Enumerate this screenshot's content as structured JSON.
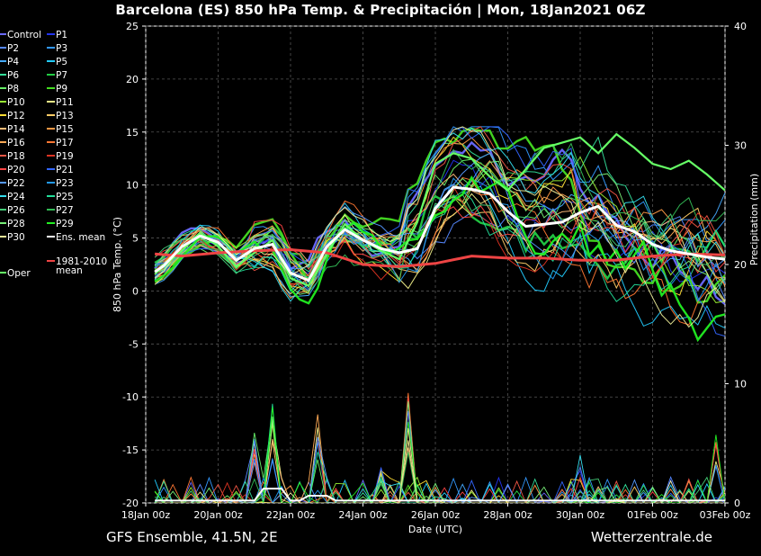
{
  "title": "Barcelona  (ES)  850 hPa Temp. & Precipitación | Mon, 18Jan2021 06Z",
  "footer_left": "GFS Ensemble, 41.5N, 2E",
  "footer_right": "Wetterzentrale.de",
  "legend": {
    "members": [
      {
        "name": "Control",
        "color": "#6a6aff"
      },
      {
        "name": "P1",
        "color": "#2233ee"
      },
      {
        "name": "P2",
        "color": "#5588ff"
      },
      {
        "name": "P3",
        "color": "#3399ff"
      },
      {
        "name": "P4",
        "color": "#44aaff"
      },
      {
        "name": "P5",
        "color": "#22ccff"
      },
      {
        "name": "P6",
        "color": "#33dd99"
      },
      {
        "name": "P7",
        "color": "#22cc44"
      },
      {
        "name": "P8",
        "color": "#66ee66"
      },
      {
        "name": "P9",
        "color": "#44dd22"
      },
      {
        "name": "P10",
        "color": "#99ee33"
      },
      {
        "name": "P11",
        "color": "#eeee88"
      },
      {
        "name": "P12",
        "color": "#ffdd33"
      },
      {
        "name": "P13",
        "color": "#ffcc66"
      },
      {
        "name": "P14",
        "color": "#ffbb77"
      },
      {
        "name": "P15",
        "color": "#ff9944"
      },
      {
        "name": "P16",
        "color": "#ffaa55"
      },
      {
        "name": "P17",
        "color": "#ff7733"
      },
      {
        "name": "P18",
        "color": "#ee5544"
      },
      {
        "name": "P19",
        "color": "#dd3322"
      },
      {
        "name": "P20",
        "color": "#ff4444"
      },
      {
        "name": "P21",
        "color": "#3366ff"
      },
      {
        "name": "P22",
        "color": "#5599ff"
      },
      {
        "name": "P23",
        "color": "#2299ee"
      },
      {
        "name": "P24",
        "color": "#33ddee"
      },
      {
        "name": "P25",
        "color": "#22dd99"
      },
      {
        "name": "P26",
        "color": "#44cc77"
      },
      {
        "name": "P27",
        "color": "#33bb55"
      },
      {
        "name": "P28",
        "color": "#77ee77"
      },
      {
        "name": "P29",
        "color": "#22ee22"
      },
      {
        "name": "P30",
        "color": "#eeee99"
      }
    ],
    "ens_mean": {
      "name": "Ens. mean",
      "color": "#ffffff"
    },
    "climate_mean_line1": "1981-2010",
    "climate_mean_line2": "mean",
    "climate_color": "#ee4444",
    "oper": {
      "name": "Oper",
      "color": "#66ff66"
    }
  },
  "chart_data": {
    "type": "line",
    "x_ticks": [
      "18Jan 00z",
      "20Jan 00z",
      "22Jan 00z",
      "24Jan 00z",
      "26Jan 00z",
      "28Jan 00z",
      "30Jan 00z",
      "01Feb 00z",
      "03Feb 00z"
    ],
    "xlabel": "Date (UTC)",
    "ylabel_left": "850 hPa Temp. (°C)",
    "ylabel_right": "Precipitation (mm)",
    "y_left_ticks": [
      25,
      20,
      15,
      10,
      5,
      0,
      -5,
      -10,
      -15,
      -20
    ],
    "y_right_ticks": [
      40,
      30,
      20,
      10,
      0
    ],
    "ylim_left": [
      -20,
      25
    ],
    "ylim_right": [
      0,
      40
    ],
    "x_range_days": [
      0,
      16
    ],
    "grid": true,
    "ens_mean": {
      "days": [
        0.25,
        0.5,
        1,
        1.5,
        2,
        2.5,
        3,
        3.5,
        4,
        4.5,
        5,
        5.5,
        6,
        6.5,
        7,
        7.5,
        8,
        8.5,
        9,
        9.5,
        10,
        10.5,
        11,
        11.5,
        12,
        12.5,
        13,
        13.5,
        14,
        14.5,
        15,
        15.5,
        16
      ],
      "temp": [
        1.8,
        2.4,
        4.2,
        5.2,
        4.6,
        2.9,
        4.0,
        4.4,
        1.7,
        1.0,
        4.2,
        5.8,
        4.8,
        4.0,
        3.6,
        4.0,
        7.8,
        9.8,
        9.6,
        9.2,
        7.5,
        6.1,
        6.3,
        6.5,
        7.4,
        8.0,
        6.2,
        5.6,
        4.4,
        3.8,
        3.5,
        3.2,
        3.0
      ]
    },
    "climate_mean": {
      "days": [
        0.25,
        1,
        2,
        3,
        4,
        5,
        6,
        7,
        8,
        9,
        10,
        11,
        12,
        13,
        14,
        15,
        16
      ],
      "temp": [
        3.5,
        3.3,
        3.6,
        3.8,
        3.9,
        3.6,
        2.5,
        2.3,
        2.6,
        3.3,
        3.1,
        3.1,
        2.9,
        2.9,
        3.3,
        3.5,
        3.4
      ]
    },
    "oper": {
      "days": [
        0.25,
        1,
        1.5,
        2,
        2.5,
        3,
        3.5,
        4,
        4.5,
        5,
        5.5,
        6,
        6.5,
        7,
        7.5,
        8,
        8.5,
        9,
        9.5,
        10,
        10.5,
        11,
        11.5,
        12,
        12.5,
        13,
        13.5,
        14,
        14.5,
        15,
        15.5,
        16
      ],
      "temp": [
        1.6,
        3.8,
        5.5,
        4.2,
        2.3,
        3.6,
        4.8,
        1.2,
        0.5,
        3.5,
        6.3,
        4.8,
        3.8,
        3.0,
        6.5,
        12.0,
        13.0,
        12.5,
        10.8,
        9.5,
        11.5,
        13.5,
        14.0,
        14.5,
        13.0,
        14.8,
        13.5,
        12.0,
        11.5,
        12.3,
        11.0,
        9.5
      ]
    },
    "precip_peaks": [
      {
        "day": 3.0,
        "mm": 6.0
      },
      {
        "day": 3.5,
        "mm": 8.5
      },
      {
        "day": 4.8,
        "mm": 7.8
      },
      {
        "day": 6.4,
        "mm": 3.0
      },
      {
        "day": 7.3,
        "mm": 9.3
      },
      {
        "day": 12.1,
        "mm": 4.5
      },
      {
        "day": 15.8,
        "mm": 6.8
      },
      {
        "day": 16.0,
        "mm": 1.5
      }
    ]
  }
}
